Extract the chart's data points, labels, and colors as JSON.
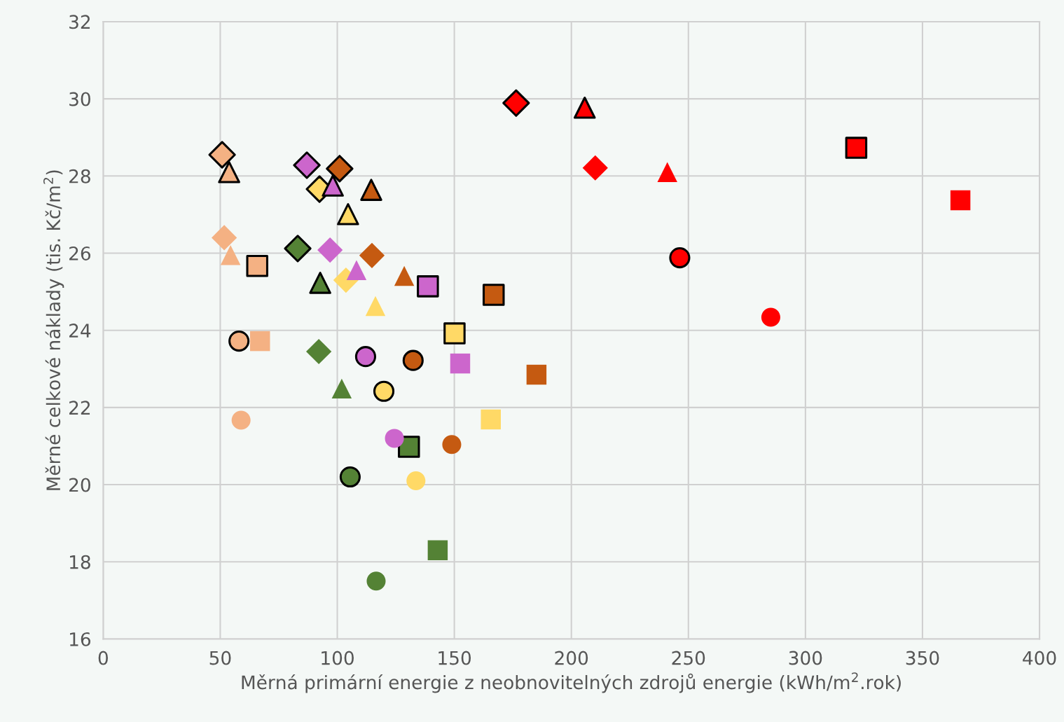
{
  "chart_data": {
    "type": "scatter",
    "xlabel": "Měrná primární energie z neobnovitelných zdrojů energie (kWh/m$^{2}$.rok)",
    "ylabel": "Měrné celkové náklady (tis. Kč/m$^{2}$)",
    "xlim": [
      0,
      400
    ],
    "xticks": [
      0,
      50,
      100,
      150,
      200,
      250,
      300,
      350,
      400
    ],
    "ylim": [
      16,
      32
    ],
    "yticks": [
      16,
      18,
      20,
      22,
      24,
      26,
      28,
      30,
      32
    ],
    "grid": true,
    "series": [
      {
        "marker": "diamond",
        "colors": [
          "#f4b183",
          "#548235",
          "#cc66cc",
          "#ffd966",
          "#c55a11",
          "#ff0000"
        ],
        "x": [
          50.8,
          83.1,
          87.0,
          92.4,
          101.0,
          176.4
        ],
        "values": [
          28.55,
          26.12,
          28.28,
          27.66,
          28.19,
          29.89
        ]
      },
      {
        "marker": "triangle",
        "colors": [
          "#f4b183",
          "#548235",
          "#cc66cc",
          "#ffd966",
          "#c55a11",
          "#ff0000"
        ],
        "x": [
          53.8,
          92.7,
          98.1,
          104.6,
          114.5,
          205.7
        ],
        "values": [
          28.1,
          25.23,
          27.75,
          27.01,
          27.64,
          29.77
        ]
      },
      {
        "marker": "square",
        "colors": [
          "#f4b183",
          "#548235",
          "#cc66cc",
          "#ffd966",
          "#c55a11",
          "#ff0000"
        ],
        "x": [
          65.8,
          130.6,
          138.7,
          150.1,
          166.8,
          321.7
        ],
        "values": [
          25.67,
          20.98,
          25.14,
          23.92,
          24.92,
          28.73
        ]
      },
      {
        "marker": "circle",
        "colors": [
          "#f4b183",
          "#548235",
          "#cc66cc",
          "#ffd966",
          "#c55a11",
          "#ff0000"
        ],
        "x": [
          58.0,
          105.5,
          112.1,
          119.9,
          132.4,
          246.3
        ],
        "values": [
          23.72,
          20.2,
          23.32,
          22.42,
          23.22,
          25.88
        ]
      },
      {
        "marker": "diamond",
        "colors": [
          "#f4b183",
          "#548235",
          "#cc66cc",
          "#ffd966",
          "#c55a11",
          "#ff0000"
        ],
        "x": [
          51.7,
          92.1,
          96.9,
          103.7,
          114.8,
          210.2
        ],
        "values": [
          26.4,
          23.45,
          26.08,
          25.3,
          25.94,
          28.21
        ]
      },
      {
        "marker": "triangle",
        "colors": [
          "#f4b183",
          "#548235",
          "#cc66cc",
          "#ffd966",
          "#c55a11",
          "#ff0000"
        ],
        "x": [
          54.4,
          101.9,
          108.2,
          116.3,
          128.6,
          241.0
        ],
        "values": [
          25.95,
          22.49,
          25.56,
          24.63,
          25.41,
          28.1
        ]
      },
      {
        "marker": "square",
        "colors": [
          "#f4b183",
          "#548235",
          "#cc66cc",
          "#ffd966",
          "#c55a11",
          "#ff0000"
        ],
        "x": [
          67.0,
          142.9,
          152.5,
          165.6,
          185.1,
          366.2
        ],
        "values": [
          23.72,
          18.3,
          23.14,
          21.69,
          22.85,
          27.37
        ]
      },
      {
        "marker": "circle",
        "colors": [
          "#f4b183",
          "#548235",
          "#cc66cc",
          "#ffd966",
          "#c55a11",
          "#ff0000"
        ],
        "x": [
          58.9,
          116.6,
          124.4,
          133.6,
          148.9,
          285.2
        ],
        "values": [
          21.67,
          17.5,
          21.2,
          20.1,
          21.04,
          24.34
        ]
      }
    ]
  }
}
